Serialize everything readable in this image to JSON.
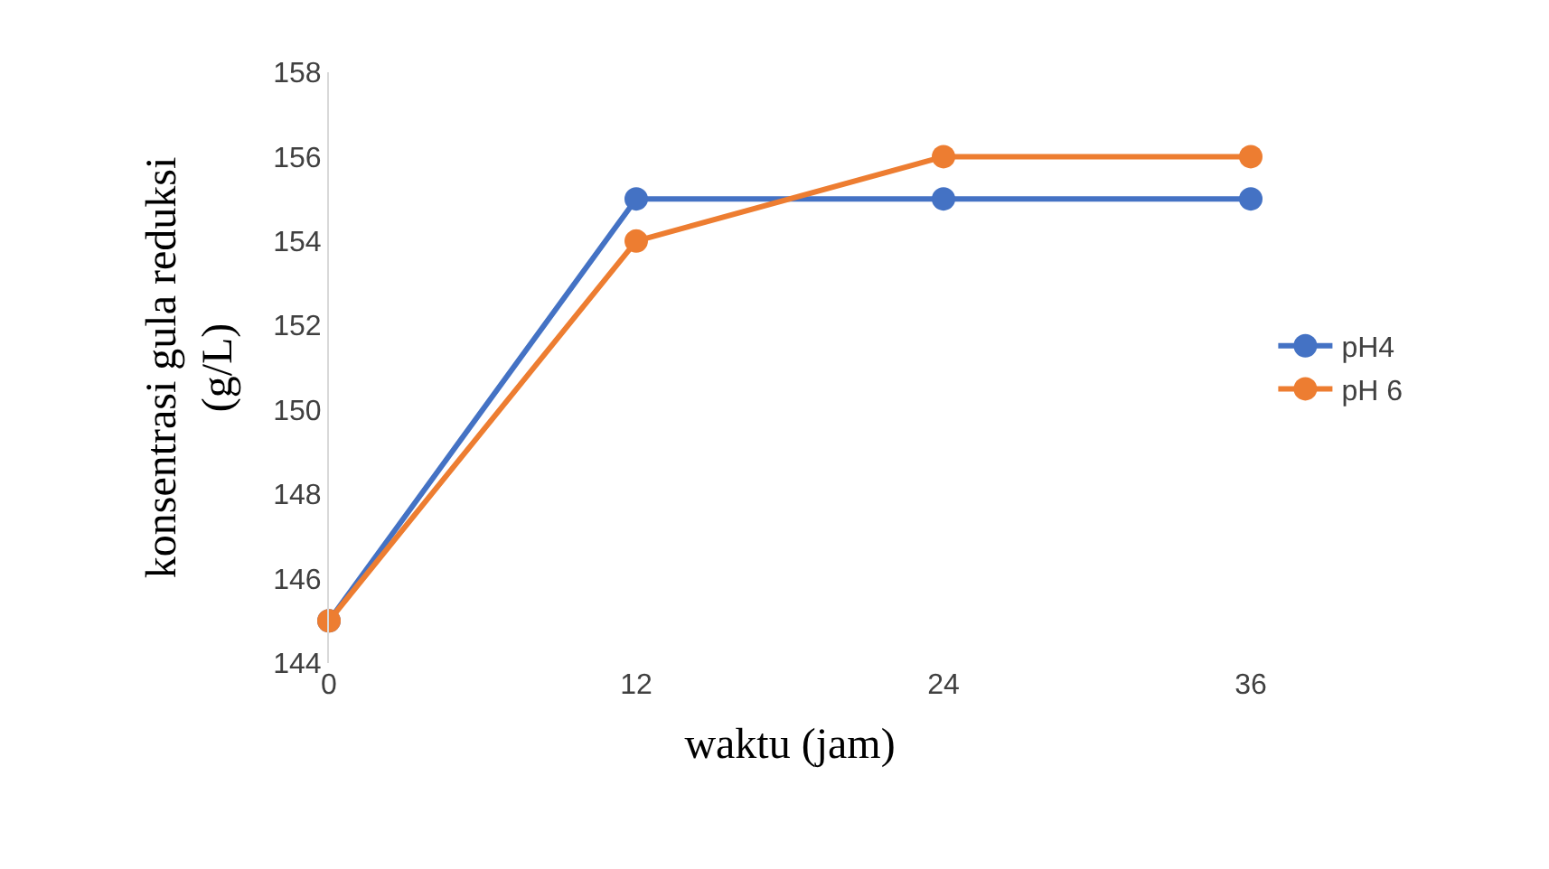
{
  "chart_data": {
    "type": "line",
    "x": [
      0,
      12,
      24,
      36
    ],
    "xlim": [
      0,
      36
    ],
    "xticks": [
      0,
      12,
      24,
      36
    ],
    "ylim": [
      144,
      158
    ],
    "yticks": [
      144,
      146,
      148,
      150,
      152,
      154,
      156,
      158
    ],
    "xlabel": "waktu (jam)",
    "ylabel": "konsentrasi gula reduksi (g/L)",
    "legend": "right",
    "marker": "circle",
    "line_style": "solid",
    "series": [
      {
        "name": "pH4",
        "color": "#4472c4",
        "values": [
          145,
          155,
          155,
          155
        ]
      },
      {
        "name": "pH 6",
        "color": "#ed7d31",
        "values": [
          145,
          154,
          156,
          156
        ]
      }
    ]
  }
}
